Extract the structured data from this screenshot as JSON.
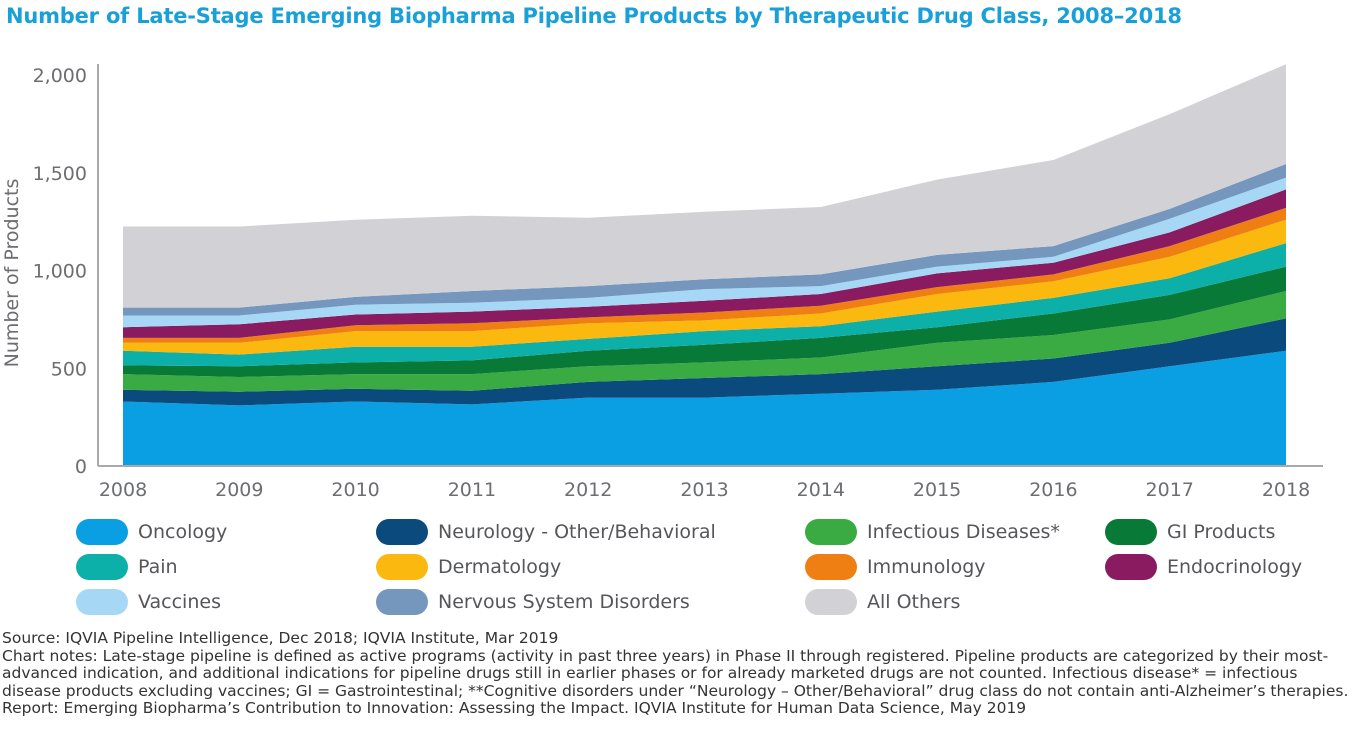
{
  "title": "Number of Late-Stage Emerging Biopharma Pipeline Products by Therapeutic Drug Class, 2008–2018",
  "chart_data": {
    "type": "area",
    "stacked": true,
    "title": "Number of Late-Stage Emerging Biopharma Pipeline Products by Therapeutic Drug Class, 2008–2018",
    "xlabel": "",
    "ylabel": "Number of Products",
    "ylim": [
      0,
      2100
    ],
    "yticks": [
      0,
      500,
      1000,
      1500,
      2000
    ],
    "ytick_labels": [
      "0",
      "500",
      "1,000",
      "1,500",
      "2,000"
    ],
    "x": [
      "2008",
      "2009",
      "2010",
      "2011",
      "2012",
      "2013",
      "2014",
      "2015",
      "2016",
      "2017",
      "2018"
    ],
    "series": [
      {
        "name": "Oncology",
        "color": "#0a9ee2",
        "values": [
          330,
          310,
          330,
          315,
          350,
          350,
          370,
          390,
          430,
          510,
          590
        ]
      },
      {
        "name": "Neurology - Other/Behavioral",
        "color": "#0b4a7c",
        "values": [
          60,
          70,
          65,
          70,
          80,
          100,
          100,
          120,
          120,
          120,
          165
        ]
      },
      {
        "name": "Infectious Diseases*",
        "color": "#3aaa43",
        "values": [
          80,
          75,
          75,
          85,
          80,
          80,
          85,
          120,
          120,
          120,
          140
        ]
      },
      {
        "name": "GI Products",
        "color": "#087936",
        "values": [
          45,
          55,
          60,
          70,
          80,
          90,
          100,
          80,
          110,
          125,
          125
        ]
      },
      {
        "name": "Pain",
        "color": "#0cb0a8",
        "values": [
          75,
          60,
          80,
          70,
          60,
          70,
          60,
          80,
          80,
          85,
          120
        ]
      },
      {
        "name": "Dermatology",
        "color": "#fbb80e",
        "values": [
          40,
          60,
          80,
          80,
          80,
          55,
          65,
          90,
          85,
          110,
          120
        ]
      },
      {
        "name": "Immunology",
        "color": "#f07f13",
        "values": [
          25,
          25,
          30,
          40,
          30,
          40,
          40,
          35,
          35,
          55,
          60
        ]
      },
      {
        "name": "Endocrinology",
        "color": "#8a1b61",
        "values": [
          55,
          70,
          55,
          60,
          55,
          60,
          60,
          70,
          60,
          70,
          95
        ]
      },
      {
        "name": "Vaccines",
        "color": "#a6d8f5",
        "values": [
          60,
          45,
          50,
          45,
          45,
          60,
          40,
          35,
          30,
          70,
          60
        ]
      },
      {
        "name": "Nervous System Disorders",
        "color": "#7597be",
        "values": [
          40,
          40,
          40,
          60,
          60,
          50,
          60,
          60,
          55,
          50,
          70
        ]
      },
      {
        "name": "All Others",
        "color": "#d2d2d6",
        "values": [
          415,
          415,
          395,
          385,
          350,
          345,
          345,
          385,
          440,
          485,
          510
        ]
      }
    ]
  },
  "legend": [
    {
      "label": "Oncology",
      "color": "#0a9ee2"
    },
    {
      "label": "Neurology - Other/Behavioral",
      "color": "#0b4a7c"
    },
    {
      "label": "Infectious Diseases*",
      "color": "#3aaa43"
    },
    {
      "label": "GI Products",
      "color": "#087936"
    },
    {
      "label": "Pain",
      "color": "#0cb0a8"
    },
    {
      "label": "Dermatology",
      "color": "#fbb80e"
    },
    {
      "label": "Immunology",
      "color": "#f07f13"
    },
    {
      "label": "Endocrinology",
      "color": "#8a1b61"
    },
    {
      "label": "Vaccines",
      "color": "#a6d8f5"
    },
    {
      "label": "Nervous System Disorders",
      "color": "#7597be"
    },
    {
      "label": "All Others",
      "color": "#d2d2d6"
    }
  ],
  "notes": {
    "source": "Source: IQVIA Pipeline Intelligence, Dec 2018; IQVIA Institute, Mar 2019",
    "chart_notes": "Chart notes: Late-stage pipeline is defined as active programs (activity in past three years) in Phase II through  registered. Pipeline products are categorized by their most-advanced indication, and additional indications for pipeline drugs still in earlier phases or for already marketed drugs are not counted. Infectious disease* = infectious disease products excluding vaccines; GI = Gastrointestinal; **Cognitive disorders under “Neurology – Other/Behavioral” drug class do not contain anti-Alzheimer’s therapies.",
    "report": "Report: Emerging Biopharma’s Contribution to Innovation: Assessing the Impact. IQVIA Institute for Human Data Science, May 2019"
  }
}
